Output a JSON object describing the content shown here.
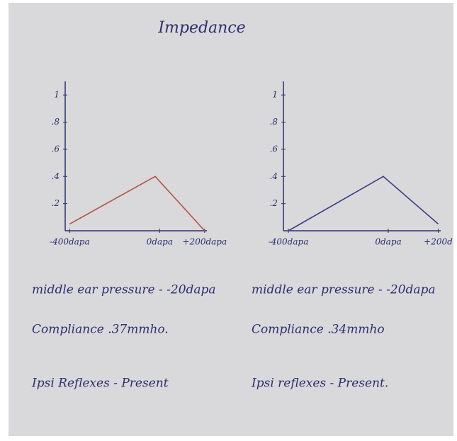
{
  "title": "Impedance",
  "chart_data": [
    {
      "type": "line",
      "x": [
        -400,
        -20,
        200
      ],
      "series": [
        {
          "color": "#b0553f",
          "values": [
            0.05,
            0.4,
            0
          ]
        }
      ],
      "xlim": [
        -420,
        210
      ],
      "ylim": [
        0,
        1.1
      ],
      "xticks": [
        {
          "value": -400,
          "label": "-400dapa"
        },
        {
          "value": 0,
          "label": "0dapa"
        },
        {
          "value": 200,
          "label": "+200dapa"
        }
      ],
      "yticks": [
        {
          "value": 0.2,
          "label": ".2"
        },
        {
          "value": 0.4,
          "label": ".4"
        },
        {
          "value": 0.6,
          "label": ".6"
        },
        {
          "value": 0.8,
          "label": ".8"
        },
        1
      ]
    },
    {
      "type": "line",
      "x": [
        -400,
        -20,
        200
      ],
      "series": [
        {
          "color": "#3c3f86",
          "values": [
            0,
            0.4,
            0.05
          ]
        }
      ],
      "xlim": [
        -420,
        210
      ],
      "ylim": [
        0,
        1.1
      ],
      "xticks": [
        {
          "value": -400,
          "label": "-400dapa"
        },
        {
          "value": 0,
          "label": "0dapa"
        },
        {
          "value": 200,
          "label": "+200d"
        }
      ],
      "yticks": [
        {
          "value": 0.2,
          "label": ".2"
        },
        {
          "value": 0.4,
          "label": ".4"
        },
        {
          "value": 0.6,
          "label": ".6"
        },
        {
          "value": 0.8,
          "label": ".8"
        },
        1
      ]
    }
  ],
  "notes": {
    "left": [
      "middle ear pressure - -20dapa",
      "Compliance .37mmho.",
      "Ipsi Reflexes - Present"
    ],
    "right": [
      "middle ear pressure - -20dapa",
      "Compliance .34mmho",
      "Ipsi reflexes - Present."
    ]
  }
}
